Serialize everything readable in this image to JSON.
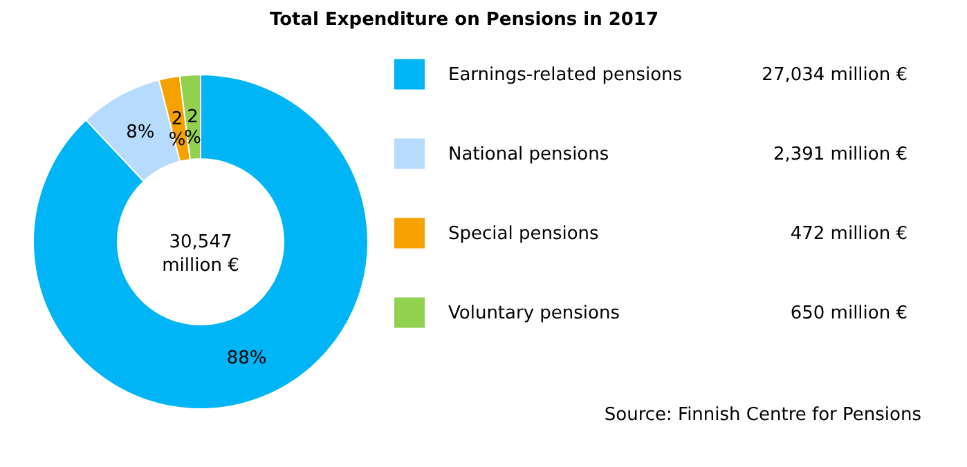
{
  "chart_data": {
    "type": "donut",
    "title": "Total Expenditure on Pensions in 2017",
    "categories": [
      "Earnings-related pensions",
      "National pensions",
      "Special pensions",
      "Voluntary pensions"
    ],
    "values": [
      88,
      8,
      2,
      2
    ],
    "colors": [
      "#00b5f5",
      "#b7dbfc",
      "#f7a100",
      "#92d050"
    ],
    "value_labels": [
      "88%",
      "8%",
      "2%",
      "2%"
    ],
    "legend": "right",
    "annotations": [
      "30,547 million €",
      "27,034 million €",
      "2,391 million €",
      "472 million €",
      "650 million €",
      "Source: Finnish Centre for Pensions"
    ]
  }
}
